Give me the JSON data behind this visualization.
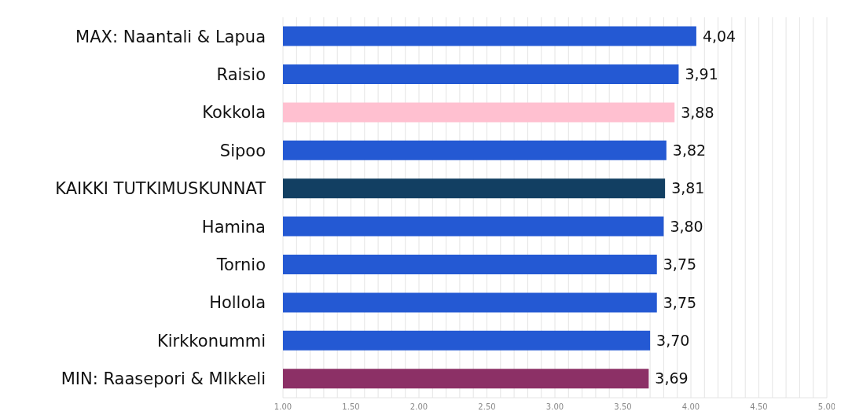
{
  "chart_data": {
    "type": "bar",
    "orientation": "horizontal",
    "categories": [
      "MAX: Naantali & Lapua",
      "Raisio",
      "Kokkola",
      "Sipoo",
      "KAIKKI TUTKIMUSKUNNAT",
      "Hamina",
      "Tornio",
      "Hollola",
      "Kirkkonummi",
      "MIN: Raasepori & MIkkeli"
    ],
    "values": [
      4.04,
      3.91,
      3.88,
      3.82,
      3.81,
      3.8,
      3.75,
      3.75,
      3.7,
      3.69
    ],
    "colors": [
      "#2459d3",
      "#2459d3",
      "#ffc0d0",
      "#2459d3",
      "#123f62",
      "#2459d3",
      "#2459d3",
      "#2459d3",
      "#2459d3",
      "#8c3066"
    ],
    "value_labels": [
      "4,04",
      "3,91",
      "3,88",
      "3,82",
      "3,81",
      "3,80",
      "3,75",
      "3,75",
      "3,70",
      "3,69"
    ],
    "xlim": [
      1,
      5
    ],
    "xticks": [
      {
        "value": 1,
        "label": "1.00"
      },
      {
        "value": 1.1,
        "label": null
      },
      {
        "value": 1.2,
        "label": null
      },
      {
        "value": 1.3,
        "label": null
      },
      {
        "value": 1.4,
        "label": null
      },
      {
        "value": 1.5,
        "label": "1.50"
      },
      {
        "value": 1.6,
        "label": null
      },
      {
        "value": 1.7,
        "label": null
      },
      {
        "value": 1.8,
        "label": null
      },
      {
        "value": 1.9,
        "label": null
      },
      {
        "value": 2,
        "label": "2.00"
      },
      {
        "value": 2.1,
        "label": null
      },
      {
        "value": 2.2,
        "label": null
      },
      {
        "value": 2.3,
        "label": null
      },
      {
        "value": 2.4,
        "label": null
      },
      {
        "value": 2.5,
        "label": "2.50"
      },
      {
        "value": 2.6,
        "label": null
      },
      {
        "value": 2.7,
        "label": null
      },
      {
        "value": 2.8,
        "label": null
      },
      {
        "value": 2.9,
        "label": null
      },
      {
        "value": 3,
        "label": "3.00"
      },
      {
        "value": 3.1,
        "label": null
      },
      {
        "value": 3.2,
        "label": null
      },
      {
        "value": 3.3,
        "label": null
      },
      {
        "value": 3.4,
        "label": null
      },
      {
        "value": 3.5,
        "label": "3.50"
      },
      {
        "value": 3.6,
        "label": null
      },
      {
        "value": 3.7,
        "label": null
      },
      {
        "value": 3.8,
        "label": null
      },
      {
        "value": 3.9,
        "label": null
      },
      {
        "value": 4,
        "label": "4.00"
      },
      {
        "value": 4.1,
        "label": null
      },
      {
        "value": 4.2,
        "label": null
      },
      {
        "value": 4.3,
        "label": null
      },
      {
        "value": 4.4,
        "label": null
      },
      {
        "value": 4.5,
        "label": "4.50"
      },
      {
        "value": 4.6,
        "label": null
      },
      {
        "value": 4.7,
        "label": null
      },
      {
        "value": 4.8,
        "label": null
      },
      {
        "value": 4.9,
        "label": null
      },
      {
        "value": 5,
        "label": "5.00"
      }
    ],
    "grid": "x"
  }
}
